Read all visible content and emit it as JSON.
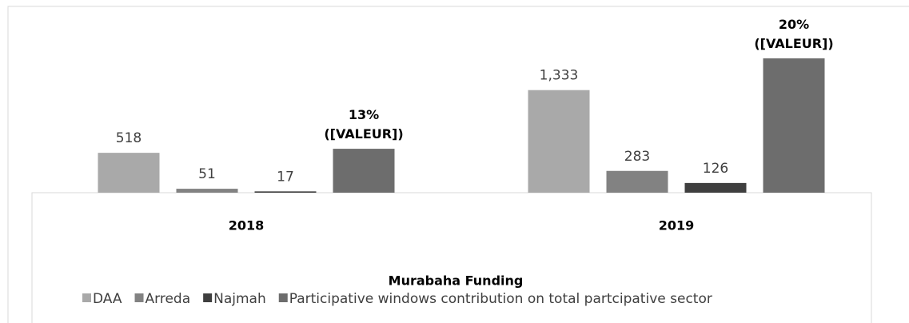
{
  "chart_data": {
    "type": "bar",
    "title": "Murabaha Funding",
    "categories": [
      "2018",
      "2019"
    ],
    "series": [
      {
        "name": "DAA",
        "color": "#a9a9a9",
        "values": [
          518,
          1333
        ],
        "value_labels": [
          "518",
          "1,333"
        ]
      },
      {
        "name": "Arreda",
        "color": "#828282",
        "values": [
          51,
          283
        ]
      },
      {
        "name": "Najmah",
        "color": "#3f3f3f",
        "values": [
          17,
          126
        ]
      },
      {
        "name": "Participative windows contribution on total partcipative sector",
        "color": "#6d6d6d",
        "values": [
          13,
          20
        ],
        "value_labels": [
          "13%\n([VALEUR])",
          "20%\n([VALEUR])"
        ],
        "axis": "y2"
      }
    ],
    "ylim": [
      0,
      2400
    ],
    "y2lim": [
      9.6,
      23.9
    ],
    "legend": "bottom"
  }
}
